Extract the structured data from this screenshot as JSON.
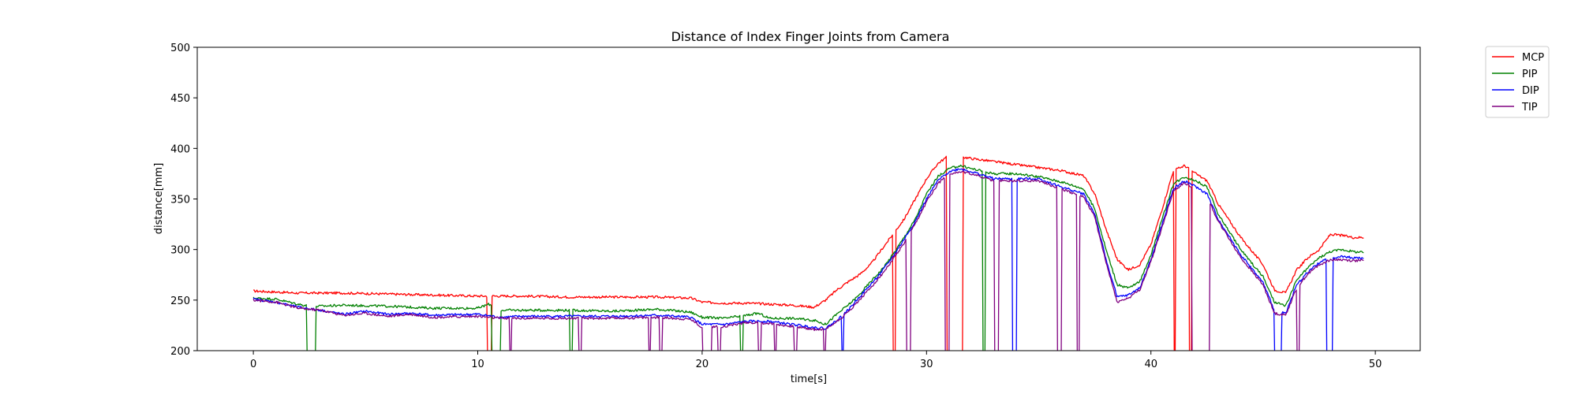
{
  "chart_data": {
    "type": "line",
    "title": "Distance of Index Finger Joints from Camera",
    "xlabel": "time[s]",
    "ylabel": "distance[mm]",
    "xlim": [
      -2.5,
      52
    ],
    "ylim": [
      200,
      500
    ],
    "xticks": [
      0,
      10,
      20,
      30,
      40,
      50
    ],
    "yticks": [
      200,
      250,
      300,
      350,
      400,
      450,
      500
    ],
    "grid": false,
    "legend_position": "outside-top-right",
    "series": [
      {
        "name": "MCP",
        "color": "#ff0000",
        "points": [
          [
            0,
            259
          ],
          [
            2,
            257
          ],
          [
            4,
            257
          ],
          [
            6,
            256
          ],
          [
            8,
            255
          ],
          [
            10,
            254
          ],
          [
            12,
            254
          ],
          [
            14,
            253
          ],
          [
            16,
            253
          ],
          [
            18,
            253
          ],
          [
            19.5,
            252
          ],
          [
            20,
            248
          ],
          [
            21,
            247
          ],
          [
            22,
            247
          ],
          [
            23,
            246
          ],
          [
            24,
            245
          ],
          [
            25,
            243
          ],
          [
            25.5,
            250
          ],
          [
            26,
            260
          ],
          [
            26.5,
            268
          ],
          [
            27,
            275
          ],
          [
            27.5,
            285
          ],
          [
            28,
            300
          ],
          [
            28.5,
            315
          ],
          [
            29,
            330
          ],
          [
            29.5,
            350
          ],
          [
            30,
            370
          ],
          [
            30.5,
            385
          ],
          [
            31,
            393
          ],
          [
            31.5,
            392
          ],
          [
            32,
            390
          ],
          [
            33,
            387
          ],
          [
            34,
            384
          ],
          [
            35,
            381
          ],
          [
            36,
            378
          ],
          [
            37,
            373
          ],
          [
            37.5,
            355
          ],
          [
            38,
            320
          ],
          [
            38.5,
            290
          ],
          [
            39,
            280
          ],
          [
            39.5,
            285
          ],
          [
            40,
            305
          ],
          [
            40.5,
            340
          ],
          [
            41,
            378
          ],
          [
            41.5,
            383
          ],
          [
            42,
            375
          ],
          [
            42.5,
            368
          ],
          [
            43,
            345
          ],
          [
            44,
            312
          ],
          [
            45,
            285
          ],
          [
            45.5,
            260
          ],
          [
            46,
            257
          ],
          [
            46.5,
            280
          ],
          [
            47,
            292
          ],
          [
            47.5,
            300
          ],
          [
            48,
            315
          ],
          [
            48.5,
            314
          ],
          [
            49,
            312
          ],
          [
            49.5,
            312
          ]
        ],
        "dropouts": [
          [
            10.4,
            10.6
          ],
          [
            28.5,
            28.6
          ],
          [
            30.9,
            31.6
          ],
          [
            41.0,
            41.1
          ],
          [
            41.7,
            41.8
          ]
        ]
      },
      {
        "name": "PIP",
        "color": "#008000",
        "points": [
          [
            0,
            252
          ],
          [
            1,
            251
          ],
          [
            2,
            246
          ],
          [
            2.5,
            244
          ],
          [
            3,
            244
          ],
          [
            4,
            245
          ],
          [
            6,
            244
          ],
          [
            8,
            242
          ],
          [
            10,
            242
          ],
          [
            10.5,
            246
          ],
          [
            11,
            240
          ],
          [
            12,
            240
          ],
          [
            14,
            240
          ],
          [
            16,
            239
          ],
          [
            18,
            241
          ],
          [
            19.5,
            238
          ],
          [
            20,
            233
          ],
          [
            21,
            232
          ],
          [
            22,
            235
          ],
          [
            22.5,
            237
          ],
          [
            23,
            232
          ],
          [
            24,
            232
          ],
          [
            25,
            230
          ],
          [
            25.5,
            226
          ],
          [
            26,
            236
          ],
          [
            26.5,
            245
          ],
          [
            27,
            255
          ],
          [
            27.5,
            268
          ],
          [
            28,
            280
          ],
          [
            28.5,
            295
          ],
          [
            29,
            312
          ],
          [
            29.5,
            330
          ],
          [
            30,
            355
          ],
          [
            30.5,
            372
          ],
          [
            31,
            380
          ],
          [
            31.5,
            383
          ],
          [
            32,
            380
          ],
          [
            33,
            375
          ],
          [
            34,
            375
          ],
          [
            35,
            372
          ],
          [
            36,
            367
          ],
          [
            37,
            360
          ],
          [
            37.5,
            340
          ],
          [
            38,
            300
          ],
          [
            38.5,
            265
          ],
          [
            39,
            262
          ],
          [
            39.5,
            268
          ],
          [
            40,
            295
          ],
          [
            40.5,
            330
          ],
          [
            41,
            365
          ],
          [
            41.5,
            372
          ],
          [
            42,
            368
          ],
          [
            42.5,
            362
          ],
          [
            43,
            335
          ],
          [
            44,
            300
          ],
          [
            45,
            273
          ],
          [
            45.5,
            248
          ],
          [
            46,
            244
          ],
          [
            46.5,
            270
          ],
          [
            47,
            282
          ],
          [
            47.5,
            292
          ],
          [
            48,
            298
          ],
          [
            48.5,
            300
          ],
          [
            49,
            298
          ],
          [
            49.5,
            297
          ]
        ],
        "dropouts": [
          [
            2.4,
            2.8
          ],
          [
            10.6,
            11.0
          ],
          [
            14.1,
            14.2
          ],
          [
            21.7,
            21.8
          ],
          [
            32.5,
            32.6
          ]
        ]
      },
      {
        "name": "DIP",
        "color": "#0000ff",
        "points": [
          [
            0,
            251
          ],
          [
            1,
            248
          ],
          [
            2,
            243
          ],
          [
            3,
            240
          ],
          [
            4,
            236
          ],
          [
            5,
            239
          ],
          [
            6,
            236
          ],
          [
            7,
            237
          ],
          [
            8,
            235
          ],
          [
            10,
            236
          ],
          [
            11,
            233
          ],
          [
            12,
            234
          ],
          [
            14,
            234
          ],
          [
            16,
            234
          ],
          [
            18,
            235
          ],
          [
            19.5,
            233
          ],
          [
            20,
            226
          ],
          [
            21,
            226
          ],
          [
            22,
            229
          ],
          [
            23,
            229
          ],
          [
            24,
            226
          ],
          [
            25,
            223
          ],
          [
            25.5,
            222
          ],
          [
            26,
            230
          ],
          [
            26.5,
            240
          ],
          [
            27,
            253
          ],
          [
            27.5,
            265
          ],
          [
            28,
            278
          ],
          [
            28.5,
            293
          ],
          [
            29,
            310
          ],
          [
            29.5,
            328
          ],
          [
            30,
            350
          ],
          [
            30.5,
            368
          ],
          [
            31,
            377
          ],
          [
            31.5,
            380
          ],
          [
            32,
            377
          ],
          [
            33,
            370
          ],
          [
            34,
            370
          ],
          [
            35,
            370
          ],
          [
            36,
            362
          ],
          [
            37,
            355
          ],
          [
            37.5,
            335
          ],
          [
            38,
            290
          ],
          [
            38.5,
            253
          ],
          [
            39,
            255
          ],
          [
            39.5,
            262
          ],
          [
            40,
            290
          ],
          [
            40.5,
            325
          ],
          [
            41,
            360
          ],
          [
            41.5,
            368
          ],
          [
            42,
            362
          ],
          [
            42.5,
            355
          ],
          [
            43,
            330
          ],
          [
            44,
            295
          ],
          [
            45,
            267
          ],
          [
            45.5,
            240
          ],
          [
            46,
            237
          ],
          [
            46.5,
            265
          ],
          [
            47,
            278
          ],
          [
            47.5,
            287
          ],
          [
            48,
            292
          ],
          [
            48.5,
            293
          ],
          [
            49,
            292
          ],
          [
            49.5,
            291
          ]
        ],
        "dropouts": [
          [
            26.2,
            26.3
          ],
          [
            33.8,
            34.0
          ],
          [
            45.5,
            45.8
          ],
          [
            47.8,
            48.1
          ]
        ]
      },
      {
        "name": "TIP",
        "color": "#800080",
        "points": [
          [
            0,
            250
          ],
          [
            1,
            248
          ],
          [
            2,
            242
          ],
          [
            3,
            240
          ],
          [
            4,
            235
          ],
          [
            5,
            237
          ],
          [
            6,
            234
          ],
          [
            7,
            236
          ],
          [
            8,
            233
          ],
          [
            10,
            234
          ],
          [
            11,
            232
          ],
          [
            12,
            232
          ],
          [
            14,
            232
          ],
          [
            16,
            232
          ],
          [
            18,
            233
          ],
          [
            19.5,
            231
          ],
          [
            20,
            223
          ],
          [
            21,
            224
          ],
          [
            22,
            228
          ],
          [
            23,
            227
          ],
          [
            24,
            224
          ],
          [
            25,
            221
          ],
          [
            25.5,
            221
          ],
          [
            26,
            229
          ],
          [
            26.5,
            238
          ],
          [
            27,
            250
          ],
          [
            27.5,
            262
          ],
          [
            28,
            275
          ],
          [
            28.5,
            290
          ],
          [
            29,
            306
          ],
          [
            29.5,
            325
          ],
          [
            30,
            347
          ],
          [
            30.5,
            365
          ],
          [
            31,
            375
          ],
          [
            31.5,
            377
          ],
          [
            32,
            375
          ],
          [
            33,
            368
          ],
          [
            34,
            368
          ],
          [
            35,
            368
          ],
          [
            36,
            360
          ],
          [
            37,
            352
          ],
          [
            37.5,
            332
          ],
          [
            38,
            287
          ],
          [
            38.5,
            248
          ],
          [
            39,
            252
          ],
          [
            39.5,
            260
          ],
          [
            40,
            288
          ],
          [
            40.5,
            322
          ],
          [
            41,
            358
          ],
          [
            41.5,
            366
          ],
          [
            42,
            360
          ],
          [
            42.5,
            352
          ],
          [
            43,
            328
          ],
          [
            44,
            292
          ],
          [
            45,
            265
          ],
          [
            45.5,
            237
          ],
          [
            46,
            235
          ],
          [
            46.5,
            262
          ],
          [
            47,
            276
          ],
          [
            47.5,
            285
          ],
          [
            48,
            290
          ],
          [
            48.5,
            290
          ],
          [
            49,
            289
          ],
          [
            49.5,
            289
          ]
        ],
        "dropouts": [
          [
            11.4,
            11.5
          ],
          [
            14.5,
            14.6
          ],
          [
            17.6,
            17.7
          ],
          [
            18.1,
            18.2
          ],
          [
            20.0,
            20.4
          ],
          [
            20.7,
            20.8
          ],
          [
            22.5,
            22.6
          ],
          [
            23.2,
            23.3
          ],
          [
            24.1,
            24.2
          ],
          [
            25.4,
            25.5
          ],
          [
            29.1,
            29.3
          ],
          [
            30.8,
            31.0
          ],
          [
            33.0,
            33.2
          ],
          [
            35.8,
            36.0
          ],
          [
            36.7,
            36.8
          ],
          [
            41.8,
            42.6
          ],
          [
            46.5,
            46.6
          ]
        ]
      }
    ]
  }
}
